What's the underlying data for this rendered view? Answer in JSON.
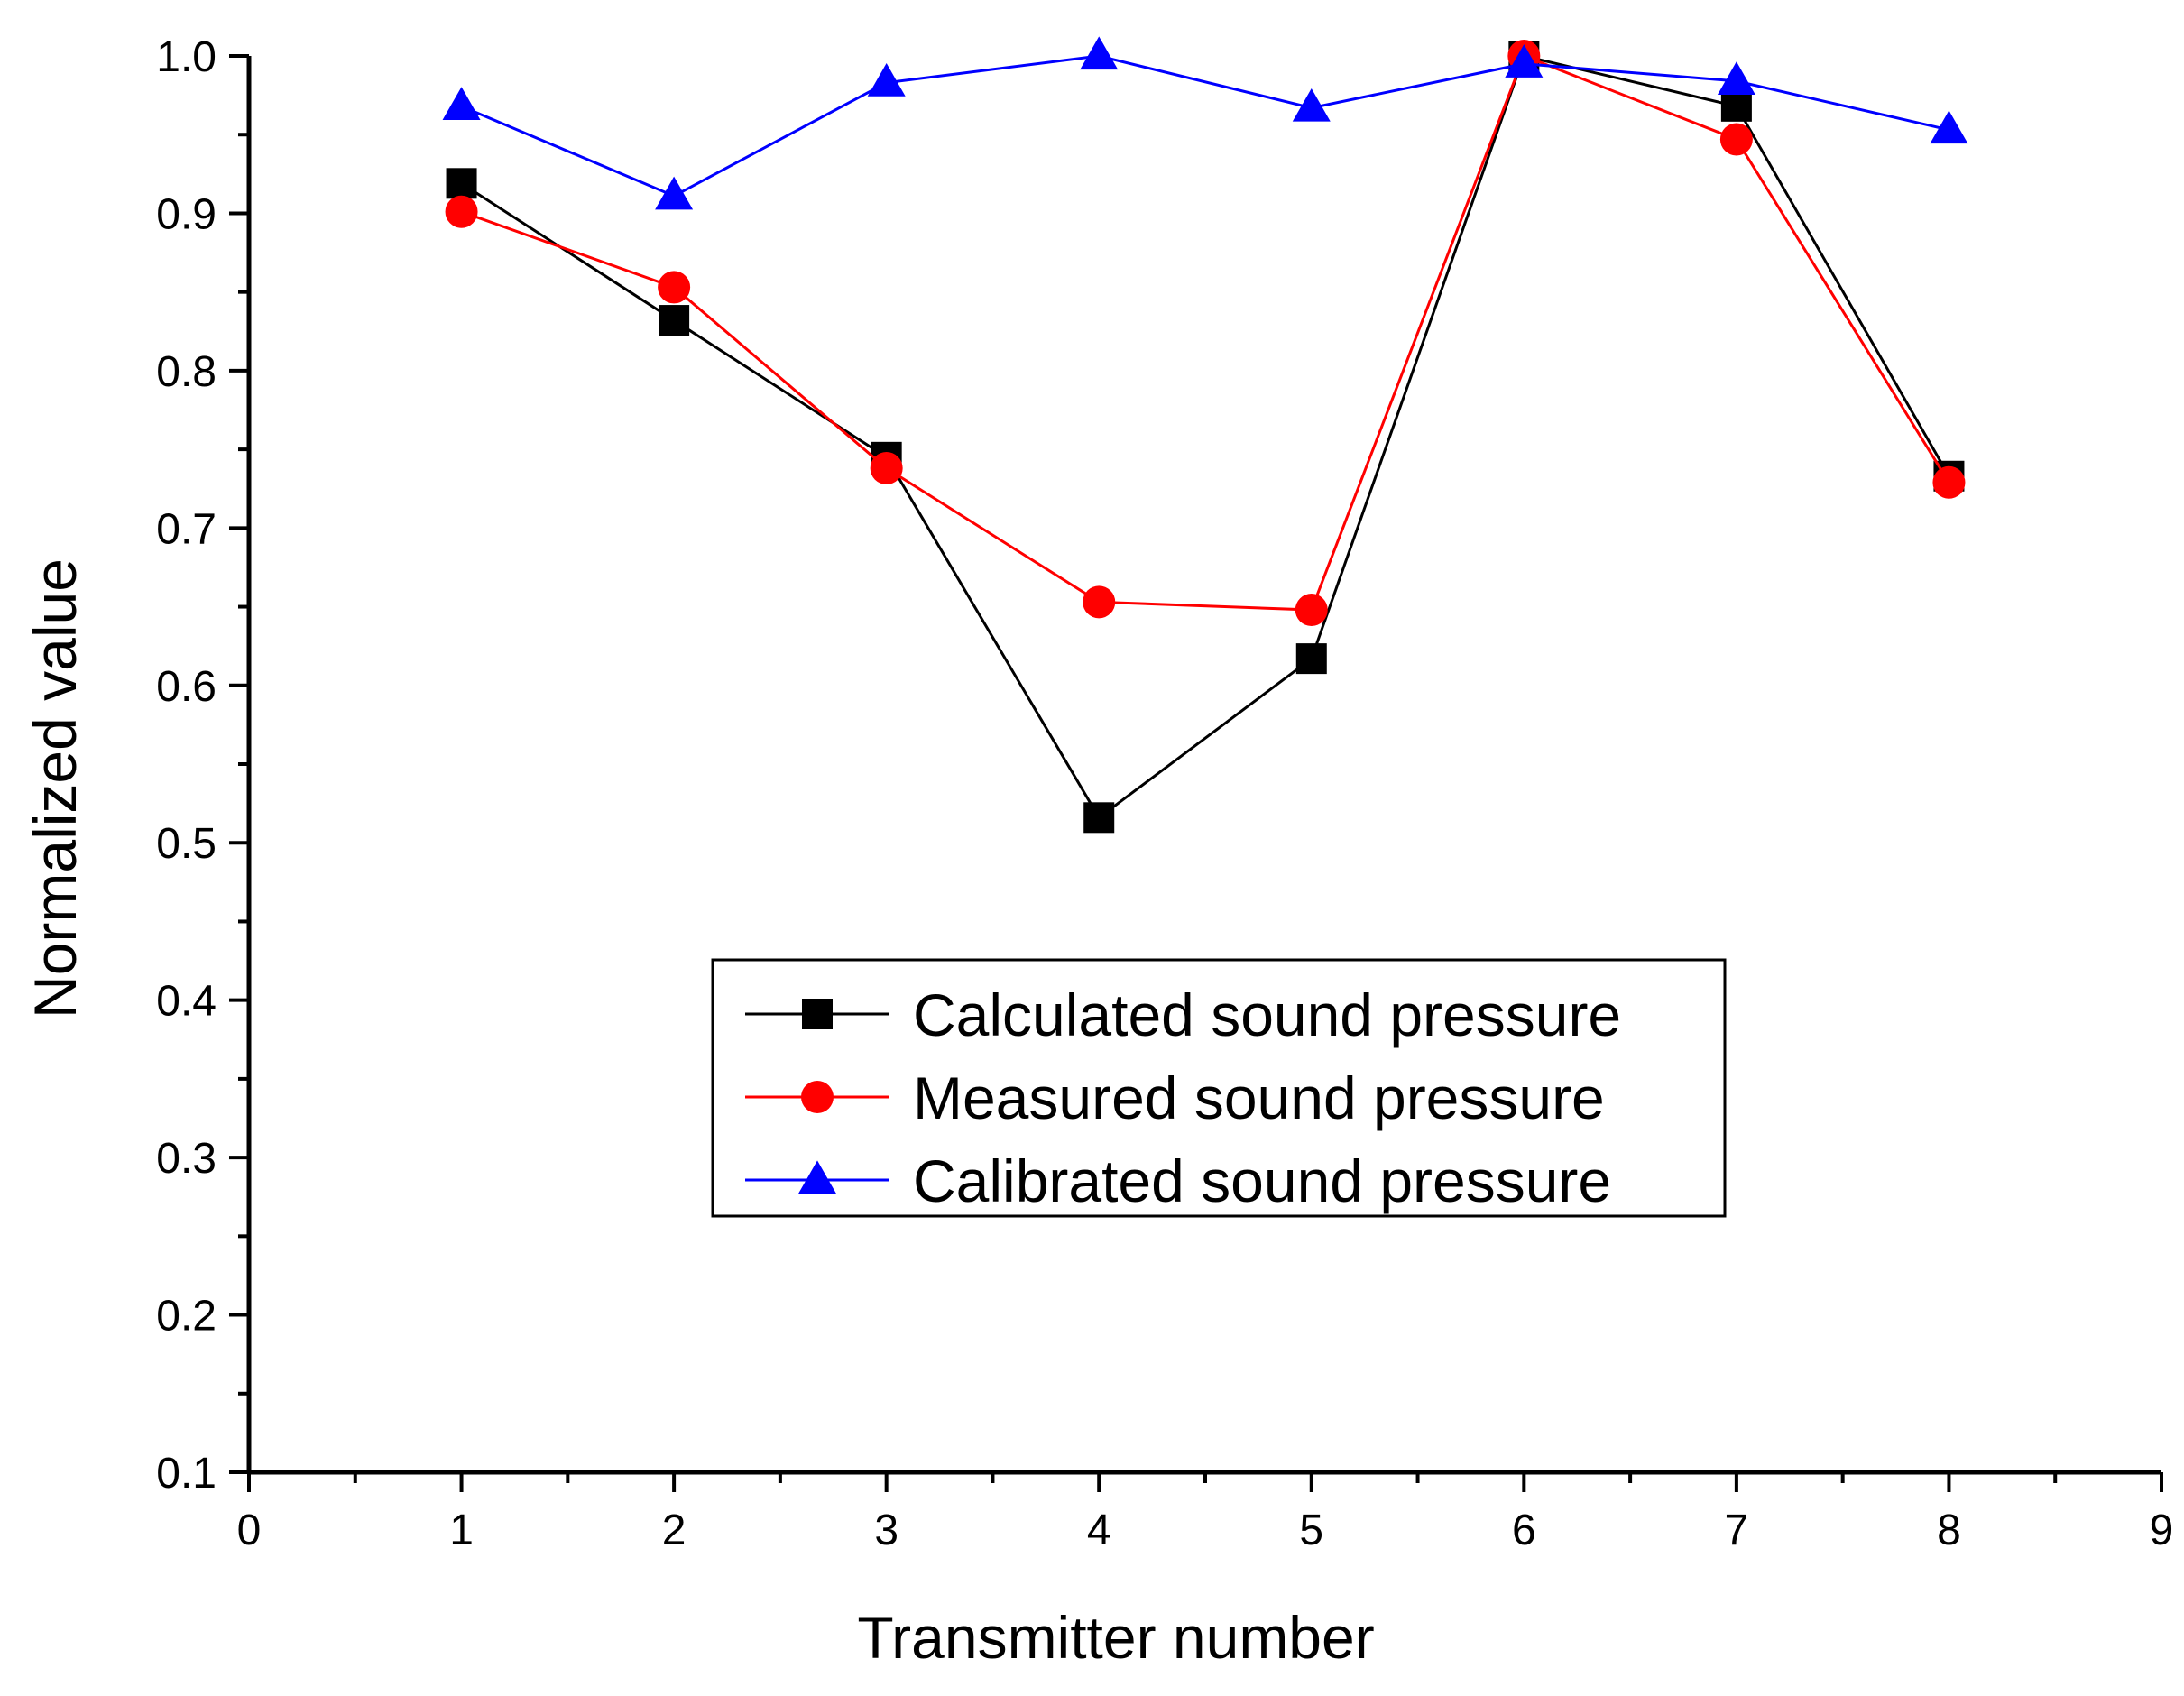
{
  "chart_data": {
    "type": "line",
    "title": "",
    "xlabel": "Transmitter number",
    "ylabel": "Normalized value",
    "xlim": [
      0,
      9
    ],
    "ylim": [
      0.1,
      1.0
    ],
    "x_ticks": [
      "0",
      "1",
      "2",
      "3",
      "4",
      "5",
      "6",
      "7",
      "8",
      "9"
    ],
    "y_ticks": [
      "0.1",
      "0.2",
      "0.3",
      "0.4",
      "0.5",
      "0.6",
      "0.7",
      "0.8",
      "0.9",
      "1.0"
    ],
    "grid": false,
    "legend_position": "center-bottom",
    "x": [
      1,
      2,
      3,
      4,
      5,
      6,
      7,
      8
    ],
    "series": [
      {
        "name": "Calculated sound pressure",
        "marker": "square",
        "color": "#000000",
        "values": [
          0.919,
          0.832,
          0.745,
          0.516,
          0.617,
          1.0,
          0.968,
          0.733
        ]
      },
      {
        "name": "Measured sound pressure",
        "marker": "circle",
        "color": "#ff0000",
        "values": [
          0.901,
          0.853,
          0.738,
          0.653,
          0.648,
          1.0,
          0.947,
          0.729
        ]
      },
      {
        "name": "Calibrated sound pressure",
        "marker": "triangle",
        "color": "#0000ff",
        "values": [
          0.968,
          0.911,
          0.983,
          1.0,
          0.967,
          0.995,
          0.984,
          0.953
        ]
      }
    ]
  }
}
